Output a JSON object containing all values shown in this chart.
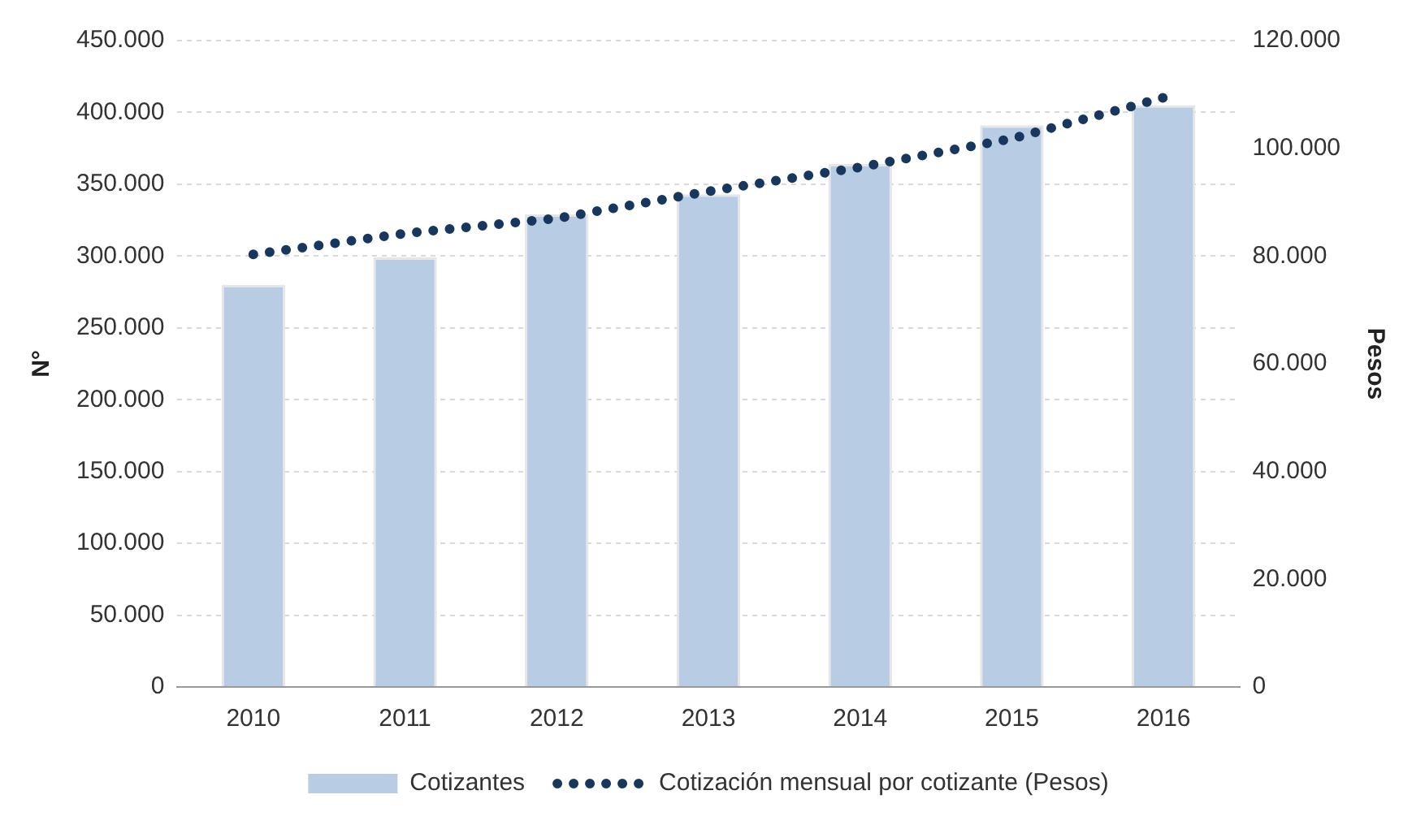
{
  "chart_data": {
    "type": "bar",
    "categories": [
      "2010",
      "2011",
      "2012",
      "2013",
      "2014",
      "2015",
      "2016"
    ],
    "series": [
      {
        "name": "Cotizantes",
        "color": "#b8cce4",
        "values": [
          280000,
          299000,
          329000,
          343000,
          364000,
          391000,
          405000
        ]
      },
      {
        "name": "Cotización mensual por cotizante (Pesos)",
        "type": "line",
        "axis": "y2",
        "color": "#17375e",
        "line_style": "dotted",
        "marker": "none",
        "values": [
          80300,
          84200,
          87000,
          92000,
          96500,
          101800,
          109400
        ]
      }
    ],
    "ylabel": "N°",
    "y2label": "Pesos",
    "ylim": [
      0,
      450000
    ],
    "yticks": [
      0,
      {
        "value": 50000,
        "label": "50.000"
      },
      {
        "value": 100000,
        "label": "100.000"
      },
      {
        "value": 150000,
        "label": "150.000"
      },
      {
        "value": 200000,
        "label": "200.000"
      },
      {
        "value": 250000,
        "label": "250.000"
      },
      {
        "value": 300000,
        "label": "300.000"
      },
      {
        "value": 350000,
        "label": "350.000"
      },
      {
        "value": 400000,
        "label": "400.000"
      },
      {
        "value": 450000,
        "label": "450.000"
      }
    ],
    "y2lim": [
      0,
      120000
    ],
    "y2ticks": [
      0,
      {
        "value": 20000,
        "label": "20.000"
      },
      {
        "value": 40000,
        "label": "40.000"
      },
      {
        "value": 60000,
        "label": "60.000"
      },
      {
        "value": 80000,
        "label": "80.000"
      },
      {
        "value": 100000,
        "label": "100.000"
      },
      {
        "value": 120000,
        "label": "120.000"
      }
    ],
    "grid": "y",
    "legend": "bottom"
  }
}
